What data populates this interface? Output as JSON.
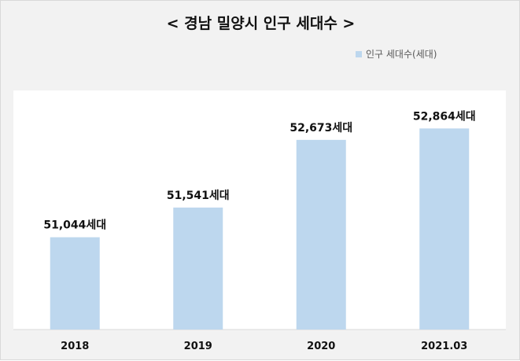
{
  "chart_data": {
    "type": "bar",
    "title": "< 경남 밀양시 인구 세대수 >",
    "legend": {
      "position": "top-right",
      "entries": [
        "인구 세대수(세대)"
      ]
    },
    "categories": [
      "2018",
      "2019",
      "2020",
      "2021.03"
    ],
    "series": [
      {
        "name": "인구 세대수(세대)",
        "values": [
          51044,
          51541,
          52673,
          52864
        ],
        "labels": [
          "51,044세대",
          "51,541세대",
          "52,673세대",
          "52,864세대"
        ],
        "color": "#bdd7ee"
      }
    ],
    "ylim": [
      49500,
      53500
    ],
    "xlabel": "",
    "ylabel": "",
    "grid": false
  }
}
